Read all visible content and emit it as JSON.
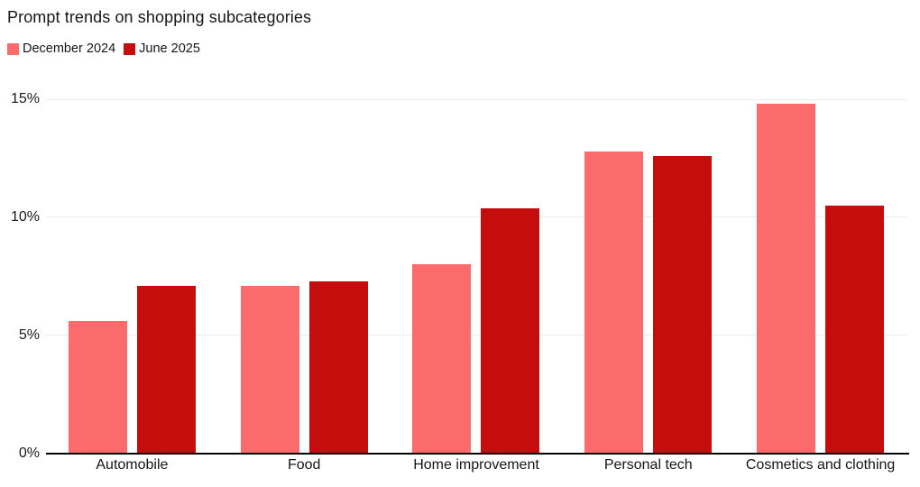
{
  "chart_data": {
    "type": "bar",
    "title": "Prompt trends on shopping subcategories",
    "categories": [
      "Automobile",
      "Food",
      "Home improvement",
      "Personal tech",
      "Cosmetics and clothing"
    ],
    "series": [
      {
        "name": "December 2024",
        "color": "#FC6B6B",
        "values": [
          5.6,
          7.1,
          8.0,
          12.8,
          14.8
        ]
      },
      {
        "name": "June 2025",
        "color": "#C50D0D",
        "values": [
          7.1,
          7.3,
          10.4,
          12.6,
          10.5
        ]
      }
    ],
    "xlabel": "",
    "ylabel": "",
    "ylim": [
      0,
      15
    ],
    "yticks": [
      {
        "value": 0,
        "label": "0%"
      },
      {
        "value": 5,
        "label": "5%"
      },
      {
        "value": 10,
        "label": "10%"
      },
      {
        "value": 15,
        "label": "15%"
      }
    ],
    "grid": true,
    "legend_position": "top-left",
    "colors": {
      "background": "#ffffff",
      "gridline": "#ebebeb",
      "axis": "#000000",
      "text": "#1a1a1a"
    }
  }
}
